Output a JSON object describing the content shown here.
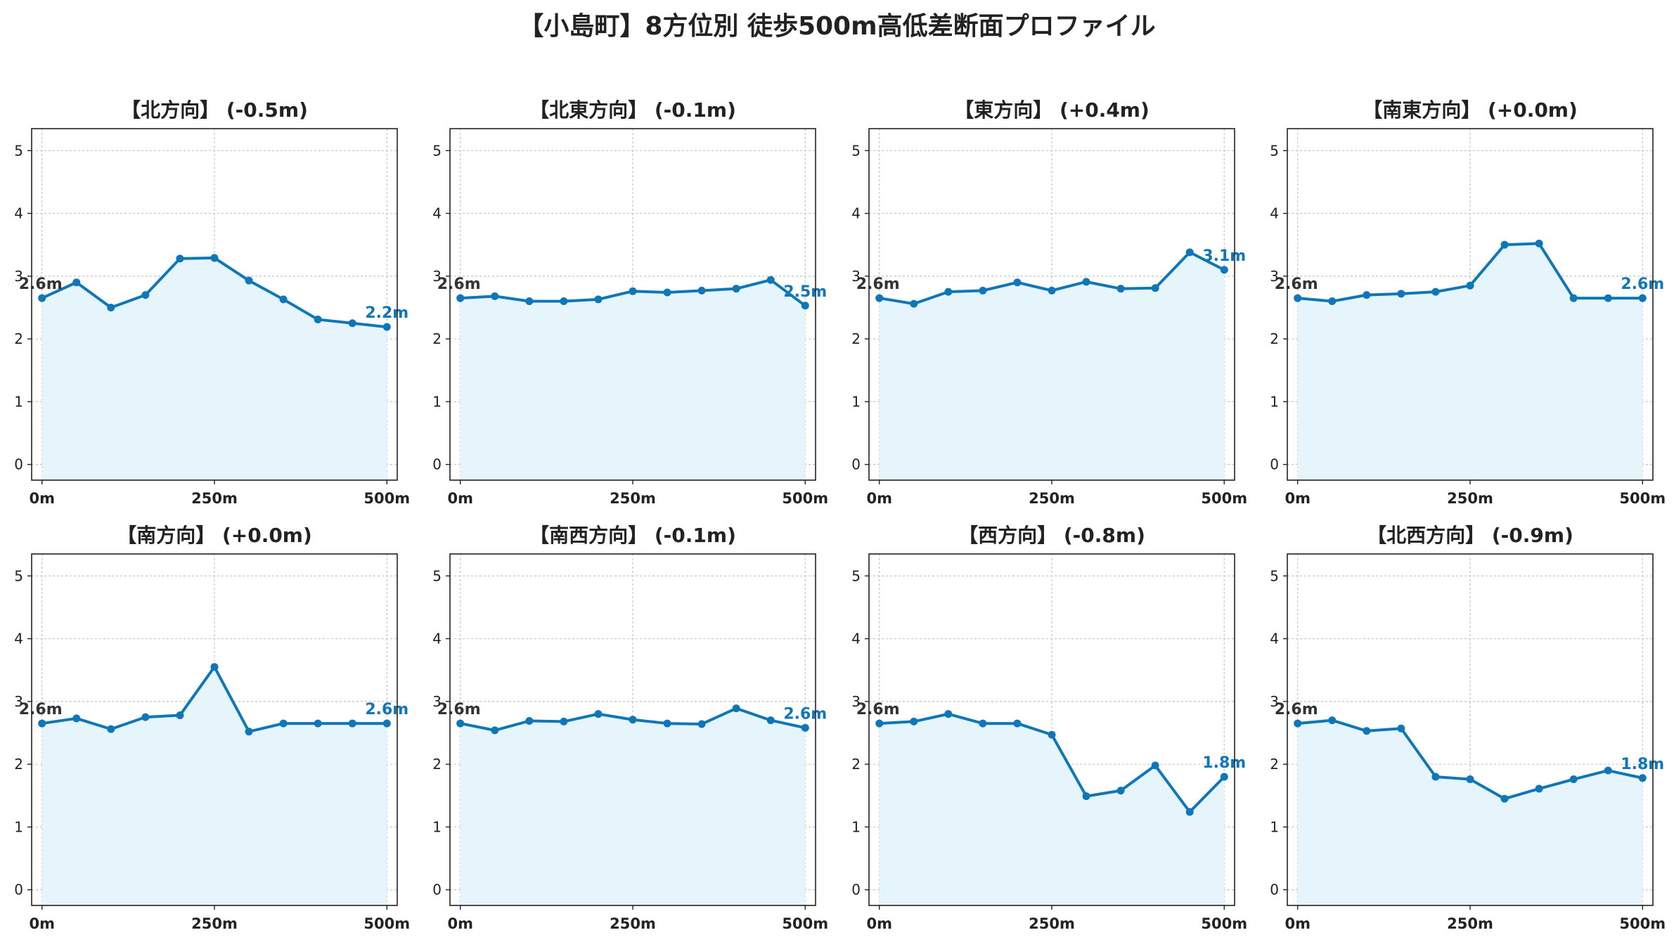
{
  "title": "【小島町】8方位別 徒歩500m高低差断面プロファイル",
  "colors": {
    "line": "#0f77b8",
    "fill": "#e6f5fb",
    "grid": "#c8c8c8",
    "axis": "#222222"
  },
  "chart_data": [
    {
      "type": "area",
      "title": "【北方向】 (-0.5m)",
      "x": [
        0,
        50,
        100,
        150,
        200,
        250,
        300,
        350,
        400,
        450,
        500
      ],
      "values": [
        2.65,
        2.9,
        2.5,
        2.7,
        3.28,
        3.29,
        2.93,
        2.63,
        2.31,
        2.25,
        2.19
      ],
      "start_label": "2.6m",
      "end_label": "2.2m",
      "ylim": [
        -0.25,
        5.35
      ],
      "yticks": [
        0,
        1,
        2,
        3,
        4,
        5
      ],
      "xticks": [
        0,
        250,
        500
      ],
      "xtick_labels": [
        "0m",
        "250m",
        "500m"
      ],
      "grid": true
    },
    {
      "type": "area",
      "title": "【北東方向】 (-0.1m)",
      "x": [
        0,
        50,
        100,
        150,
        200,
        250,
        300,
        350,
        400,
        450,
        500
      ],
      "values": [
        2.65,
        2.68,
        2.6,
        2.6,
        2.63,
        2.76,
        2.74,
        2.77,
        2.8,
        2.94,
        2.53
      ],
      "start_label": "2.6m",
      "end_label": "2.5m",
      "ylim": [
        -0.25,
        5.35
      ],
      "yticks": [
        0,
        1,
        2,
        3,
        4,
        5
      ],
      "xticks": [
        0,
        250,
        500
      ],
      "xtick_labels": [
        "0m",
        "250m",
        "500m"
      ],
      "grid": true
    },
    {
      "type": "area",
      "title": "【東方向】 (+0.4m)",
      "x": [
        0,
        50,
        100,
        150,
        200,
        250,
        300,
        350,
        400,
        450,
        500
      ],
      "values": [
        2.65,
        2.56,
        2.75,
        2.77,
        2.9,
        2.77,
        2.91,
        2.8,
        2.81,
        3.38,
        3.1
      ],
      "start_label": "2.6m",
      "end_label": "3.1m",
      "ylim": [
        -0.25,
        5.35
      ],
      "yticks": [
        0,
        1,
        2,
        3,
        4,
        5
      ],
      "xticks": [
        0,
        250,
        500
      ],
      "xtick_labels": [
        "0m",
        "250m",
        "500m"
      ],
      "grid": true
    },
    {
      "type": "area",
      "title": "【南東方向】 (+0.0m)",
      "x": [
        0,
        50,
        100,
        150,
        200,
        250,
        300,
        350,
        400,
        450,
        500
      ],
      "values": [
        2.65,
        2.6,
        2.7,
        2.72,
        2.75,
        2.85,
        3.5,
        3.52,
        2.65,
        2.65,
        2.65
      ],
      "start_label": "2.6m",
      "end_label": "2.6m",
      "ylim": [
        -0.25,
        5.35
      ],
      "yticks": [
        0,
        1,
        2,
        3,
        4,
        5
      ],
      "xticks": [
        0,
        250,
        500
      ],
      "xtick_labels": [
        "0m",
        "250m",
        "500m"
      ],
      "grid": true
    },
    {
      "type": "area",
      "title": "【南方向】 (+0.0m)",
      "x": [
        0,
        50,
        100,
        150,
        200,
        250,
        300,
        350,
        400,
        450,
        500
      ],
      "values": [
        2.65,
        2.73,
        2.56,
        2.75,
        2.78,
        3.55,
        2.52,
        2.65,
        2.65,
        2.65,
        2.65
      ],
      "start_label": "2.6m",
      "end_label": "2.6m",
      "ylim": [
        -0.25,
        5.35
      ],
      "yticks": [
        0,
        1,
        2,
        3,
        4,
        5
      ],
      "xticks": [
        0,
        250,
        500
      ],
      "xtick_labels": [
        "0m",
        "250m",
        "500m"
      ],
      "grid": true
    },
    {
      "type": "area",
      "title": "【南西方向】 (-0.1m)",
      "x": [
        0,
        50,
        100,
        150,
        200,
        250,
        300,
        350,
        400,
        450,
        500
      ],
      "values": [
        2.65,
        2.54,
        2.69,
        2.68,
        2.8,
        2.71,
        2.65,
        2.64,
        2.89,
        2.7,
        2.58
      ],
      "start_label": "2.6m",
      "end_label": "2.6m",
      "ylim": [
        -0.25,
        5.35
      ],
      "yticks": [
        0,
        1,
        2,
        3,
        4,
        5
      ],
      "xticks": [
        0,
        250,
        500
      ],
      "xtick_labels": [
        "0m",
        "250m",
        "500m"
      ],
      "grid": true
    },
    {
      "type": "area",
      "title": "【西方向】 (-0.8m)",
      "x": [
        0,
        50,
        100,
        150,
        200,
        250,
        300,
        350,
        400,
        450,
        500
      ],
      "values": [
        2.65,
        2.68,
        2.8,
        2.65,
        2.65,
        2.47,
        1.49,
        1.58,
        1.98,
        1.24,
        1.8
      ],
      "start_label": "2.6m",
      "end_label": "1.8m",
      "ylim": [
        -0.25,
        5.35
      ],
      "yticks": [
        0,
        1,
        2,
        3,
        4,
        5
      ],
      "xticks": [
        0,
        250,
        500
      ],
      "xtick_labels": [
        "0m",
        "250m",
        "500m"
      ],
      "grid": true
    },
    {
      "type": "area",
      "title": "【北西方向】 (-0.9m)",
      "x": [
        0,
        50,
        100,
        150,
        200,
        250,
        300,
        350,
        400,
        450,
        500
      ],
      "values": [
        2.65,
        2.7,
        2.53,
        2.57,
        1.8,
        1.76,
        1.45,
        1.61,
        1.76,
        1.9,
        1.78
      ],
      "start_label": "2.6m",
      "end_label": "1.8m",
      "ylim": [
        -0.25,
        5.35
      ],
      "yticks": [
        0,
        1,
        2,
        3,
        4,
        5
      ],
      "xticks": [
        0,
        250,
        500
      ],
      "xtick_labels": [
        "0m",
        "250m",
        "500m"
      ],
      "grid": true
    }
  ]
}
